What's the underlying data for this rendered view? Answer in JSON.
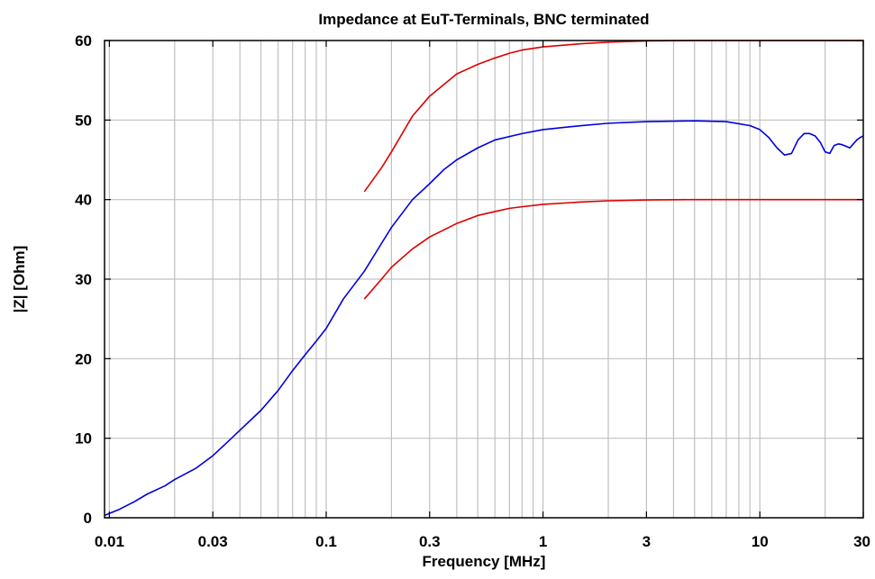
{
  "chart_data": {
    "type": "line",
    "title": "Impedance at EuT-Terminals, BNC terminated",
    "xlabel": "Frequency [MHz]",
    "ylabel": "|Z| [Ohm]",
    "xscale": "log",
    "xlim": [
      0.0095,
      30
    ],
    "ylim": [
      0,
      60
    ],
    "grid": true,
    "x_tick_labels": [
      "0.01",
      "0.03",
      "0.1",
      "0.3",
      "1",
      "3",
      "10",
      "30"
    ],
    "x_tick_values": [
      0.01,
      0.03,
      0.1,
      0.3,
      1,
      3,
      10,
      30
    ],
    "y_tick_labels": [
      "0",
      "10",
      "20",
      "30",
      "40",
      "50",
      "60"
    ],
    "y_tick_values": [
      0,
      10,
      20,
      30,
      40,
      50,
      60
    ],
    "colors": {
      "measured": "#0000dd",
      "limits": "#dd0000",
      "grid": "#c0c0c0",
      "frame": "#000000"
    },
    "series": [
      {
        "color": "#0000dd",
        "x": [
          0.0095,
          0.011,
          0.013,
          0.015,
          0.018,
          0.02,
          0.025,
          0.03,
          0.035,
          0.04,
          0.05,
          0.06,
          0.07,
          0.08,
          0.09,
          0.1,
          0.12,
          0.15,
          0.18,
          0.2,
          0.25,
          0.3,
          0.35,
          0.4,
          0.5,
          0.6,
          0.8,
          1.0,
          1.5,
          2.0,
          3.0,
          5.0,
          7.0,
          9.0,
          10.0,
          11.0,
          12.0,
          13.0,
          14.0,
          15.0,
          16.0,
          17.0,
          18.0,
          19.0,
          20.0,
          21.0,
          22.0,
          23.0,
          24.0,
          25.0,
          26.0,
          27.0,
          28.0,
          29.0,
          30.0
        ],
        "values": [
          0.3,
          1.0,
          2.0,
          3.0,
          4.0,
          4.8,
          6.2,
          7.8,
          9.5,
          11.0,
          13.5,
          16.0,
          18.5,
          20.5,
          22.2,
          23.8,
          27.5,
          31.0,
          34.5,
          36.5,
          40.0,
          42.0,
          43.8,
          45.0,
          46.5,
          47.5,
          48.3,
          48.8,
          49.3,
          49.6,
          49.8,
          49.9,
          49.8,
          49.3,
          48.8,
          47.8,
          46.5,
          45.6,
          45.8,
          47.5,
          48.3,
          48.3,
          48.0,
          47.2,
          46.0,
          45.8,
          46.8,
          47.0,
          46.9,
          46.7,
          46.5,
          47.0,
          47.5,
          47.8,
          48.0
        ]
      },
      {
        "color": "#dd0000",
        "x": [
          0.15,
          0.18,
          0.2,
          0.25,
          0.3,
          0.4,
          0.5,
          0.6,
          0.7,
          0.8,
          1.0,
          1.5,
          2.0,
          3.0,
          5.0,
          10.0,
          20.0,
          30.0
        ],
        "values": [
          41.0,
          44.0,
          46.0,
          50.5,
          53.0,
          55.8,
          57.0,
          57.8,
          58.4,
          58.8,
          59.2,
          59.6,
          59.8,
          59.95,
          60.0,
          60.0,
          60.0,
          60.0
        ]
      },
      {
        "color": "#dd0000",
        "x": [
          0.15,
          0.18,
          0.2,
          0.25,
          0.3,
          0.4,
          0.5,
          0.6,
          0.7,
          0.8,
          1.0,
          1.5,
          2.0,
          3.0,
          5.0,
          10.0,
          20.0,
          30.0
        ],
        "values": [
          27.5,
          30.0,
          31.5,
          33.8,
          35.3,
          37.0,
          38.0,
          38.5,
          38.9,
          39.1,
          39.4,
          39.7,
          39.85,
          39.95,
          40.0,
          40.0,
          40.0,
          40.0
        ]
      }
    ]
  }
}
